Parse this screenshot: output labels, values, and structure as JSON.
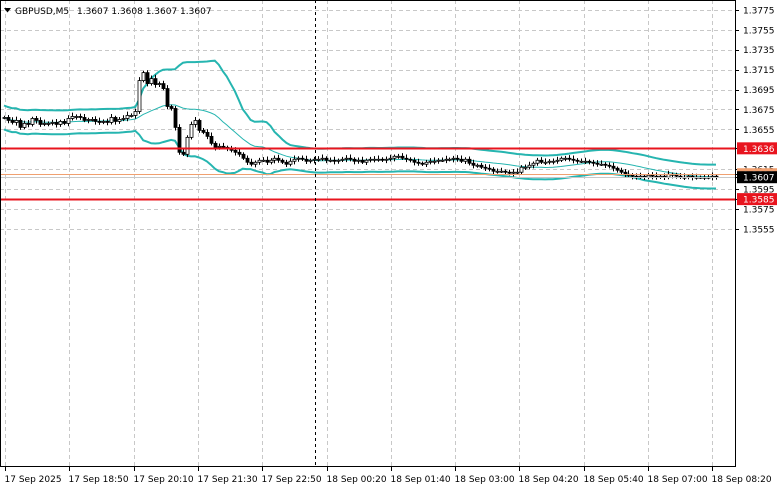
{
  "header": {
    "symbol": "GBPUSD,M5",
    "ohlc": "1.3607 1.3608 1.3607 1.3607"
  },
  "colors": {
    "background": "#ffffff",
    "grid": "#c8c8c8",
    "bands": "#26b5b0",
    "candle": "#000000",
    "level": "#e8141e",
    "bid": "#f0a070",
    "ask": "#c8c8c8"
  },
  "icons": {
    "collapse": "triangle-down-icon"
  },
  "chart_data": {
    "type": "candlestick",
    "symbol": "GBPUSD",
    "timeframe": "M5",
    "title": "GBPUSD,M5",
    "grid": true,
    "ylim": [
      1.3548,
      1.3783
    ],
    "y_ticks": [
      "1.3775",
      "1.3755",
      "1.3735",
      "1.3715",
      "1.3695",
      "1.3675",
      "1.3655",
      "1.3636",
      "1.3615",
      "1.3610",
      "1.3607",
      "1.3595",
      "1.3585",
      "1.3575",
      "1.3555"
    ],
    "y_tick_values": [
      1.3775,
      1.3755,
      1.3735,
      1.3715,
      1.3695,
      1.3675,
      1.3655,
      1.3636,
      1.3615,
      1.361,
      1.3607,
      1.3595,
      1.3585,
      1.3575,
      1.3555
    ],
    "x_ticks": [
      "17 Sep 2025",
      "17 Sep 18:50",
      "17 Sep 20:10",
      "17 Sep 21:30",
      "17 Sep 22:50",
      "18 Sep 00:20",
      "18 Sep 01:40",
      "18 Sep 03:00",
      "18 Sep 04:20",
      "18 Sep 05:40",
      "18 Sep 07:00",
      "18 Sep 08:20"
    ],
    "candle_count": 178,
    "horizontal_levels": [
      {
        "label": "1.3636",
        "value": 1.3636
      },
      {
        "label": "1.3585",
        "value": 1.3585
      }
    ],
    "current_price": {
      "label": "1.3607",
      "value": 1.3607
    },
    "bid_line": {
      "label": "1.3610",
      "value": 1.361
    },
    "series": [
      {
        "name": "Close",
        "values": [
          1.3667,
          1.3664,
          1.3662,
          1.3664,
          1.3657,
          1.3661,
          1.366,
          1.3666,
          1.3664,
          1.366,
          1.3661,
          1.3661,
          1.3662,
          1.366,
          1.3663,
          1.3661,
          1.3666,
          1.3668,
          1.3668,
          1.3667,
          1.3664,
          1.3665,
          1.3665,
          1.3663,
          1.3662,
          1.3663,
          1.3662,
          1.3667,
          1.3663,
          1.3665,
          1.3666,
          1.3669,
          1.3669,
          1.3673,
          1.3704,
          1.3712,
          1.3701,
          1.3706,
          1.37,
          1.3701,
          1.3696,
          1.3678,
          1.3676,
          1.3657,
          1.3632,
          1.363,
          1.3647,
          1.366,
          1.3664,
          1.3654,
          1.3652,
          1.3648,
          1.3641,
          1.3637,
          1.3638,
          1.3637,
          1.3636,
          1.3634,
          1.3632,
          1.363,
          1.3626,
          1.3622,
          1.362,
          1.3622,
          1.3624,
          1.3624,
          1.3622,
          1.3624,
          1.3626,
          1.3624,
          1.3622,
          1.362,
          1.3623,
          1.3625,
          1.3626,
          1.3625,
          1.3623,
          1.3624,
          1.3625,
          1.3625,
          1.3626,
          1.3624,
          1.3624,
          1.3623,
          1.3624,
          1.3625,
          1.3626,
          1.3625,
          1.3623,
          1.3624,
          1.3622,
          1.3624,
          1.3625,
          1.3625,
          1.3625,
          1.3624,
          1.3625,
          1.3626,
          1.3628,
          1.3628,
          1.3626,
          1.3625,
          1.3624,
          1.3622,
          1.3621,
          1.362,
          1.3622,
          1.3623,
          1.3623,
          1.3624,
          1.3624,
          1.3625,
          1.3625,
          1.3626,
          1.3625,
          1.3623,
          1.3625,
          1.3621,
          1.3619,
          1.3619,
          1.3617,
          1.3616,
          1.3615,
          1.3613,
          1.3613,
          1.3613,
          1.3612,
          1.3611,
          1.3612,
          1.3612,
          1.3617,
          1.3617,
          1.3619,
          1.3621,
          1.3624,
          1.3622,
          1.3622,
          1.3623,
          1.3623,
          1.3624,
          1.3626,
          1.3626,
          1.3625,
          1.3624,
          1.3623,
          1.3623,
          1.3623,
          1.3622,
          1.3621,
          1.362,
          1.362,
          1.3619,
          1.3618,
          1.3616,
          1.3614,
          1.3612,
          1.361,
          1.3609,
          1.3608,
          1.3607,
          1.3608,
          1.3607,
          1.3609,
          1.3608,
          1.3607,
          1.3608,
          1.3607,
          1.361,
          1.3609,
          1.3608,
          1.3607,
          1.3607,
          1.3608,
          1.3607,
          1.3607,
          1.3607,
          1.3607,
          1.3607,
          1.3608,
          1.3607
        ]
      }
    ],
    "indicators": [
      {
        "name": "Bollinger Bands",
        "color": "#26b5b0"
      }
    ]
  }
}
